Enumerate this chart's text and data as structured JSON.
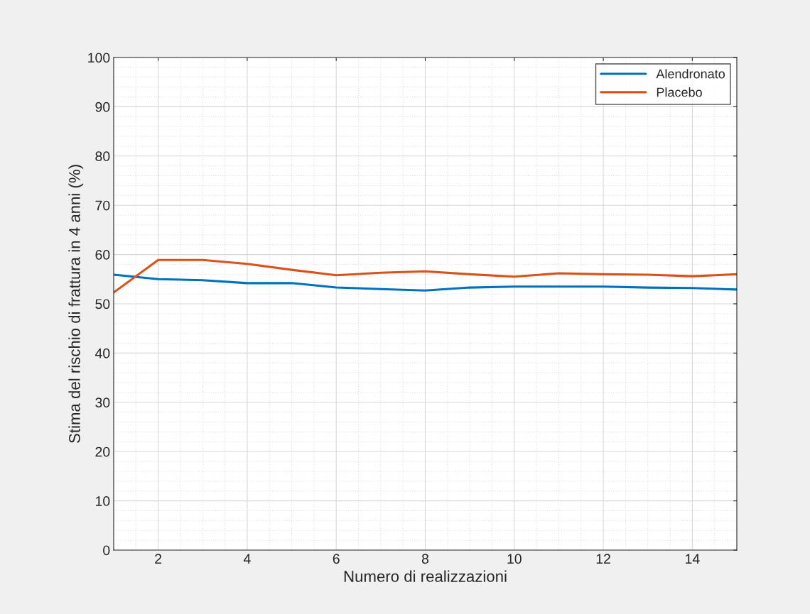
{
  "chart_data": {
    "type": "line",
    "xlabel": "Numero di realizzazioni",
    "ylabel": "Stima del rischio di frattura in 4 anni (%)",
    "x": [
      1,
      2,
      3,
      4,
      5,
      6,
      7,
      8,
      9,
      10,
      11,
      12,
      13,
      14,
      15
    ],
    "series": [
      {
        "name": "Alendronato",
        "color": "#0072bd",
        "values": [
          55.9,
          55.0,
          54.8,
          54.2,
          54.2,
          53.3,
          53.0,
          52.7,
          53.3,
          53.5,
          53.5,
          53.5,
          53.3,
          53.2,
          52.9
        ]
      },
      {
        "name": "Placebo",
        "color": "#d95319",
        "values": [
          52.3,
          58.9,
          58.9,
          58.1,
          56.9,
          55.8,
          56.3,
          56.6,
          56.0,
          55.5,
          56.2,
          56.0,
          55.9,
          55.6,
          56.0
        ]
      }
    ],
    "xlim": [
      1,
      15
    ],
    "xticks": [
      2,
      4,
      6,
      8,
      10,
      12,
      14
    ],
    "ylim": [
      0,
      100
    ],
    "yticks": [
      0,
      10,
      20,
      30,
      40,
      50,
      60,
      70,
      80,
      90,
      100
    ],
    "grid": true,
    "legend": "top right",
    "line_style": "solid",
    "marker": "none"
  }
}
